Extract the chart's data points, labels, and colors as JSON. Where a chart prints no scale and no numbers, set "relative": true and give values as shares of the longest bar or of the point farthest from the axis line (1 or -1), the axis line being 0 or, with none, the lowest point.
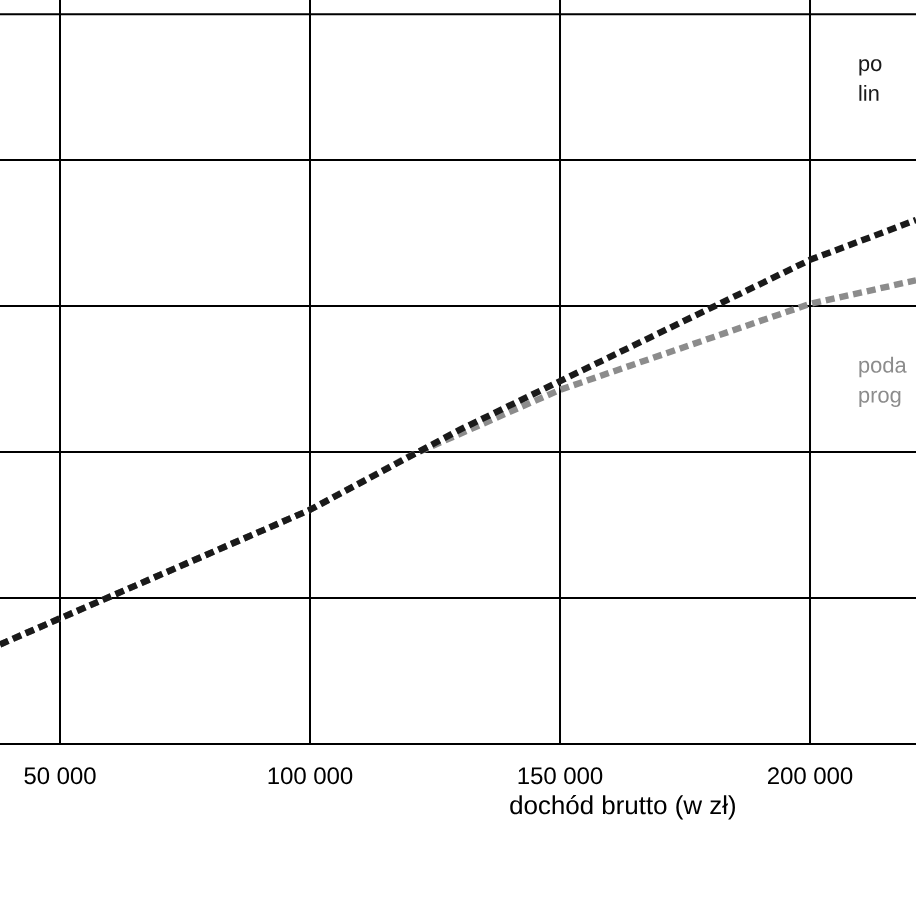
{
  "chart_data": {
    "type": "line",
    "xlabel": "dochód brutto (w zł)",
    "relative": true,
    "xlim": [
      38000,
      221200
    ],
    "xticks": [
      {
        "value": 50000,
        "label": "50 000"
      },
      {
        "value": 100000,
        "label": "100 000"
      },
      {
        "value": 150000,
        "label": "150 000"
      },
      {
        "value": 200000,
        "label": "200 000"
      }
    ],
    "grid": true,
    "line_style": "dashed",
    "marker": "none",
    "series": [
      {
        "name": "po lin",
        "color": "#1a1a1a",
        "x": [
          38000,
          100000,
          130000,
          200000,
          221200
        ],
        "values": [
          0.19,
          0.447,
          0.6,
          0.924,
          1
        ]
      },
      {
        "name": "poda prog",
        "color": "#8c8c8c",
        "x": [
          38000,
          100000,
          120000,
          150000,
          200000,
          221200
        ],
        "values": [
          0.19,
          0.447,
          0.55,
          0.676,
          0.84,
          0.885
        ]
      }
    ]
  }
}
